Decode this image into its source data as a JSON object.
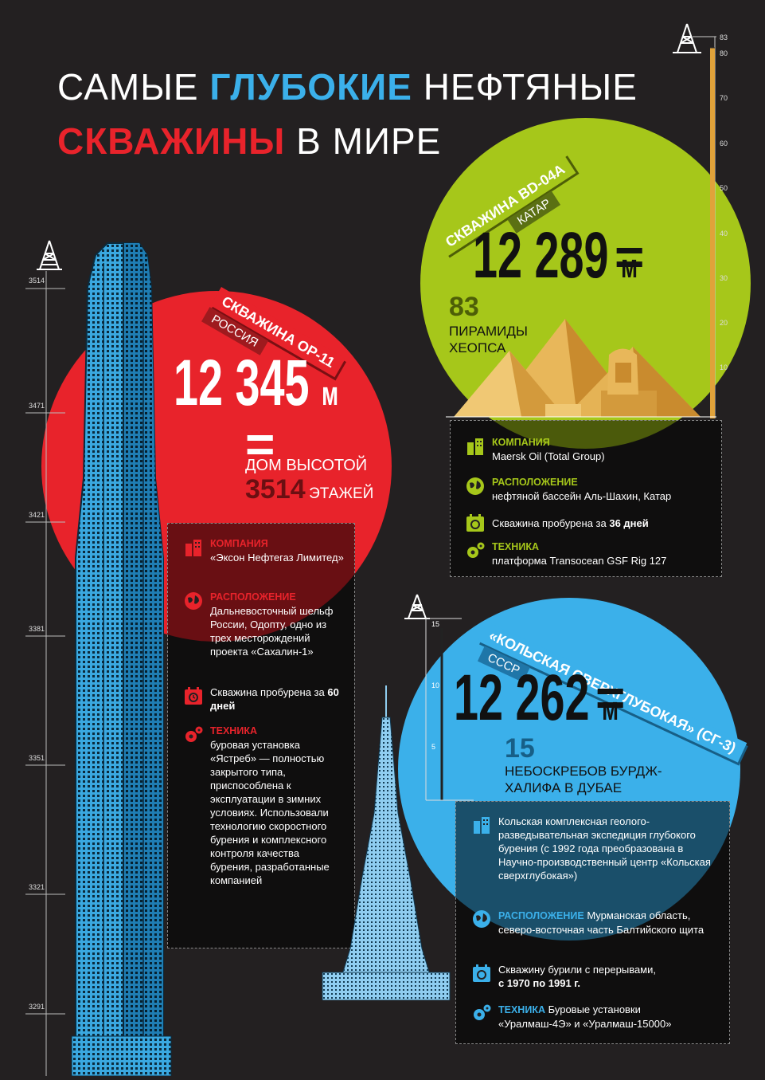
{
  "header": {
    "title_part1": "САМЫЕ",
    "title_part2": "ГЛУБОКИЕ",
    "title_part3": "НЕФТЯНЫЕ",
    "title_part4": "СКВАЖИНЫ",
    "title_part5": "В МИРЕ"
  },
  "colors": {
    "red": "#e8232b",
    "green": "#a6c71a",
    "blue": "#3bb0ea",
    "background": "#232021"
  },
  "tower_scale": {
    "ticks": [
      "3514",
      "3471",
      "3421",
      "3381",
      "3351",
      "3321",
      "3291"
    ]
  },
  "pyramid_scale": {
    "ticks": [
      "83",
      "80",
      "70",
      "60",
      "50",
      "40",
      "30",
      "20",
      "10"
    ]
  },
  "burj_scale": {
    "ticks": [
      "15",
      "10",
      "5"
    ]
  },
  "op11": {
    "ribbon_name": "СКВАЖИНА ОР-11",
    "ribbon_country": "РОССИЯ",
    "depth_number": "12 345",
    "depth_unit": "м",
    "equals": "=",
    "compare_text": "ДОМ ВЫСОТОЙ",
    "compare_number": "3514",
    "compare_unit": "ЭТАЖЕЙ",
    "company_label": "КОМПАНИЯ",
    "company_text": "«Эксон Нефтегаз Лимитед»",
    "location_label": "РАСПОЛОЖЕНИЕ",
    "location_text": "Дальневосточный шельф России, Одопту, одно из трех месторождений проекта «Сахалин-1»",
    "drilled_text": "Скважина пробурена за",
    "drilled_bold": "60 дней",
    "tech_label": "ТЕХНИКА",
    "tech_text": "буровая установка «Ястреб» — полностью закрытого типа, приспособлена к эксплуатации в зимних условиях. Использовали технологию скоростного бурения и комплексного контроля качества бурения, разработанные компанией"
  },
  "bd04a": {
    "ribbon_name": "СКВАЖИНА BD-04A",
    "ribbon_country": "КАТАР",
    "depth_number": "12 289",
    "depth_unit": "м",
    "equals": "=",
    "compare_number": "83",
    "compare_text": "ПИРАМИДЫ ХЕОПСА",
    "company_label": "КОМПАНИЯ",
    "company_text": "Maersk Oil (Total Group)",
    "location_label": "РАСПОЛОЖЕНИЕ",
    "location_text": "нефтяной бассейн Аль-Шахин, Катар",
    "drilled_text": "Скважина пробурена за",
    "drilled_bold": "36 дней",
    "tech_label": "ТЕХНИКА",
    "tech_text": "платформа Transocean GSF Rig 127"
  },
  "kola": {
    "ribbon_name": "«КОЛЬСКАЯ СВЕРХГЛУБОКАЯ» (СГ-3)",
    "ribbon_country": "СССР",
    "depth_number": "12 262",
    "depth_unit": "м",
    "equals": "=",
    "compare_number": "15",
    "compare_text": "НЕБОСКРЕБОВ БУРДЖ-ХАЛИФА В ДУБАЕ",
    "company_text": "Кольская комплексная геолого-разведывательная экспедиция глубокого бурения (с 1992 года преобразована в Научно-производственный центр «Кольская сверхглубокая»)",
    "location_label": "РАСПОЛОЖЕНИЕ",
    "location_text": "Мурманская область, северо-восточная часть Балтийского щита",
    "drilled_text": "Скважину бурили с перерывами,",
    "drilled_bold": "с 1970 по 1991 г.",
    "tech_label": "ТЕХНИКА",
    "tech_text": "Буровые установки «Уралмаш-4Э» и «Уралмаш-15000»"
  }
}
